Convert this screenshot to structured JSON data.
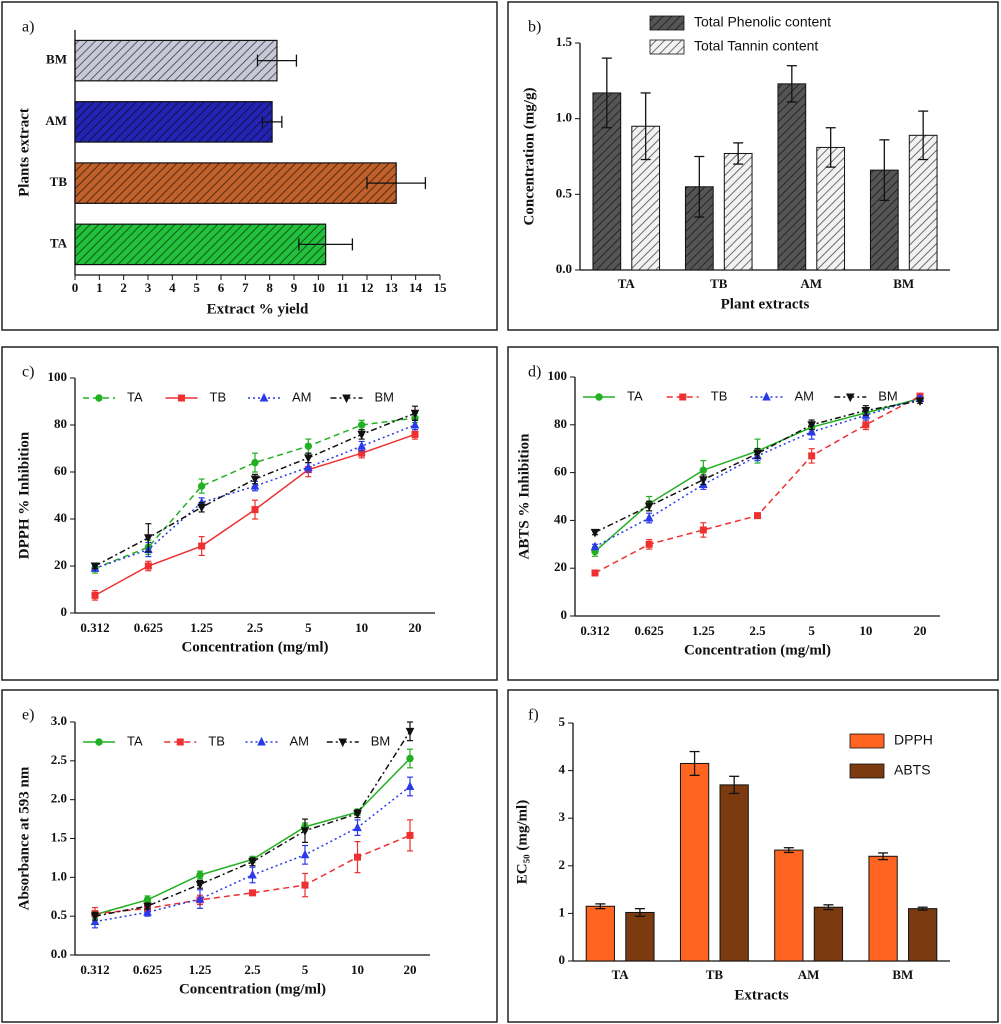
{
  "chart_data": [
    {
      "type": "barh",
      "title": "a)",
      "x_label": "Extract % yield",
      "y_label": "Plants extract",
      "categories": [
        "TA",
        "TB",
        "AM",
        "BM"
      ],
      "values": [
        10.3,
        13.2,
        8.1,
        8.3
      ],
      "errors": [
        1.1,
        1.2,
        0.4,
        0.8
      ],
      "colors": [
        "#22c03c",
        "#c0602a",
        "#2424b4",
        "#c8c8d8"
      ],
      "hatch": true,
      "xlim": [
        0,
        15
      ],
      "xticks": [
        0,
        1,
        2,
        3,
        4,
        5,
        6,
        7,
        8,
        9,
        10,
        11,
        12,
        13,
        14,
        15
      ]
    },
    {
      "type": "bar",
      "title": "b)",
      "x_label": "Plant extracts",
      "y_label": "Concentration (mg/g)",
      "categories": [
        "TA",
        "TB",
        "AM",
        "BM"
      ],
      "hatch": true,
      "legend": "top",
      "series": [
        {
          "name": "Total Phenolic content",
          "color": "#555555",
          "values": [
            1.17,
            0.55,
            1.23,
            0.66
          ],
          "errors": [
            0.23,
            0.2,
            0.12,
            0.2
          ]
        },
        {
          "name": "Total Tannin content",
          "color": "#f2f2f2",
          "values": [
            0.95,
            0.77,
            0.81,
            0.89
          ],
          "errors": [
            0.22,
            0.07,
            0.13,
            0.16
          ]
        }
      ],
      "ylim": [
        0,
        1.5
      ],
      "yticks": [
        {
          "value": 0,
          "label": "0.0"
        },
        0.5,
        {
          "value": 1,
          "label": "1.0"
        },
        1.5
      ]
    },
    {
      "type": "line",
      "title": "c)",
      "x_label": "Concentration (mg/ml)",
      "y_label": "DPPH % Inhibition",
      "categories": [
        "0.312",
        "0.625",
        "1.25",
        "2.5",
        "5",
        "10",
        "20"
      ],
      "legend": "top",
      "series": [
        {
          "name": "TA",
          "color": "#22b022",
          "style": "dashed",
          "marker": "circle",
          "values": [
            19,
            28,
            54,
            64,
            71,
            80,
            83
          ],
          "errors": [
            2,
            3,
            3,
            4,
            3,
            2,
            2
          ]
        },
        {
          "name": "TB",
          "color": "#ee3030",
          "style": "solid",
          "marker": "square",
          "values": [
            7.5,
            20,
            28.5,
            44,
            61,
            68,
            76
          ],
          "errors": [
            2,
            2,
            4,
            4,
            3,
            2,
            2
          ]
        },
        {
          "name": "AM",
          "color": "#2a3ae8",
          "style": "dotted",
          "marker": "triangle",
          "values": [
            19,
            27,
            47,
            54,
            62,
            71,
            80
          ],
          "errors": [
            1,
            3,
            2,
            2,
            2,
            2,
            2
          ]
        },
        {
          "name": "BM",
          "color": "#111111",
          "style": "dashdot",
          "marker": "triangle-down",
          "values": [
            20,
            32,
            45,
            57,
            66,
            76,
            85
          ],
          "errors": [
            1,
            6,
            2,
            2,
            2,
            2,
            3
          ]
        }
      ],
      "ylim": [
        0,
        100
      ],
      "yticks": [
        0,
        20,
        40,
        60,
        80,
        100
      ]
    },
    {
      "type": "line",
      "title": "d)",
      "x_label": "Concentration (mg/ml)",
      "y_label": "ABTS % Inhibition",
      "categories": [
        "0.312",
        "0.625",
        "1.25",
        "2.5",
        "5",
        "10",
        "20"
      ],
      "legend": "top",
      "series": [
        {
          "name": "TA",
          "color": "#22b022",
          "style": "solid",
          "marker": "circle",
          "values": [
            27,
            47,
            61,
            69,
            79,
            85,
            91
          ],
          "errors": [
            2,
            3,
            4,
            5,
            2,
            2,
            1
          ]
        },
        {
          "name": "TB",
          "color": "#ee3030",
          "style": "dashed",
          "marker": "square",
          "values": [
            18,
            30,
            36,
            42,
            67,
            80,
            92
          ],
          "errors": [
            1,
            2,
            3,
            1,
            3,
            2,
            1
          ]
        },
        {
          "name": "AM",
          "color": "#2a3ae8",
          "style": "dotted",
          "marker": "triangle",
          "values": [
            29,
            41,
            55,
            67,
            77,
            84,
            91
          ],
          "errors": [
            1,
            2,
            2,
            2,
            3,
            2,
            1
          ]
        },
        {
          "name": "BM",
          "color": "#111111",
          "style": "dashdot",
          "marker": "triangle-down",
          "values": [
            35,
            46,
            57,
            68,
            80,
            86,
            90
          ],
          "errors": [
            1,
            2,
            2,
            2,
            2,
            2,
            1
          ]
        }
      ],
      "ylim": [
        0,
        100
      ],
      "yticks": [
        0,
        20,
        40,
        60,
        80,
        100
      ]
    },
    {
      "type": "line",
      "title": "e)",
      "x_label": "Concentration (mg/ml)",
      "y_label": "Absorbance at 593 nm",
      "categories": [
        "0.312",
        "0.625",
        "1.25",
        "2.5",
        "5",
        "10",
        "20"
      ],
      "legend": "top",
      "series": [
        {
          "name": "TA",
          "color": "#22b022",
          "style": "solid",
          "marker": "circle",
          "values": [
            0.52,
            0.71,
            1.03,
            1.23,
            1.65,
            1.84,
            2.53
          ],
          "errors": [
            0.05,
            0.05,
            0.05,
            0.04,
            0.05,
            0.04,
            0.12
          ]
        },
        {
          "name": "TB",
          "color": "#ee3030",
          "style": "dashed",
          "marker": "square",
          "values": [
            0.53,
            0.6,
            0.71,
            0.8,
            0.9,
            1.26,
            1.54
          ],
          "errors": [
            0.08,
            0.04,
            0.06,
            0.03,
            0.15,
            0.2,
            0.2
          ]
        },
        {
          "name": "AM",
          "color": "#2a3ae8",
          "style": "dotted",
          "marker": "triangle",
          "values": [
            0.43,
            0.55,
            0.72,
            1.03,
            1.29,
            1.64,
            2.17
          ],
          "errors": [
            0.08,
            0.05,
            0.12,
            0.1,
            0.12,
            0.1,
            0.12
          ]
        },
        {
          "name": "BM",
          "color": "#111111",
          "style": "dashdot",
          "marker": "triangle-down",
          "values": [
            0.5,
            0.63,
            0.91,
            1.2,
            1.6,
            1.82,
            2.88
          ],
          "errors": [
            0.05,
            0.04,
            0.05,
            0.05,
            0.15,
            0.05,
            0.12
          ]
        }
      ],
      "ylim": [
        0,
        3
      ],
      "yticks": [
        {
          "value": 0,
          "label": "0.0"
        },
        0.5,
        {
          "value": 1,
          "label": "1.0"
        },
        1.5,
        {
          "value": 2,
          "label": "2.0"
        },
        2.5,
        {
          "value": 3,
          "label": "3.0"
        }
      ]
    },
    {
      "type": "bar",
      "title": "f)",
      "x_label": "Extracts",
      "y_label": "EC₅₀ (mg/ml)",
      "categories": [
        "TA",
        "TB",
        "AM",
        "BM"
      ],
      "hatch": false,
      "legend": "upper right",
      "series": [
        {
          "name": "DPPH",
          "color": "#ff6520",
          "values": [
            1.15,
            4.15,
            2.33,
            2.2
          ],
          "errors": [
            0.05,
            0.25,
            0.05,
            0.07
          ]
        },
        {
          "name": "ABTS",
          "color": "#7b3a10",
          "values": [
            1.02,
            3.7,
            1.13,
            1.1
          ],
          "errors": [
            0.08,
            0.18,
            0.05,
            0.03
          ]
        }
      ],
      "ylim": [
        0,
        5
      ],
      "yticks": [
        0,
        1,
        2,
        3,
        4,
        5
      ]
    }
  ]
}
